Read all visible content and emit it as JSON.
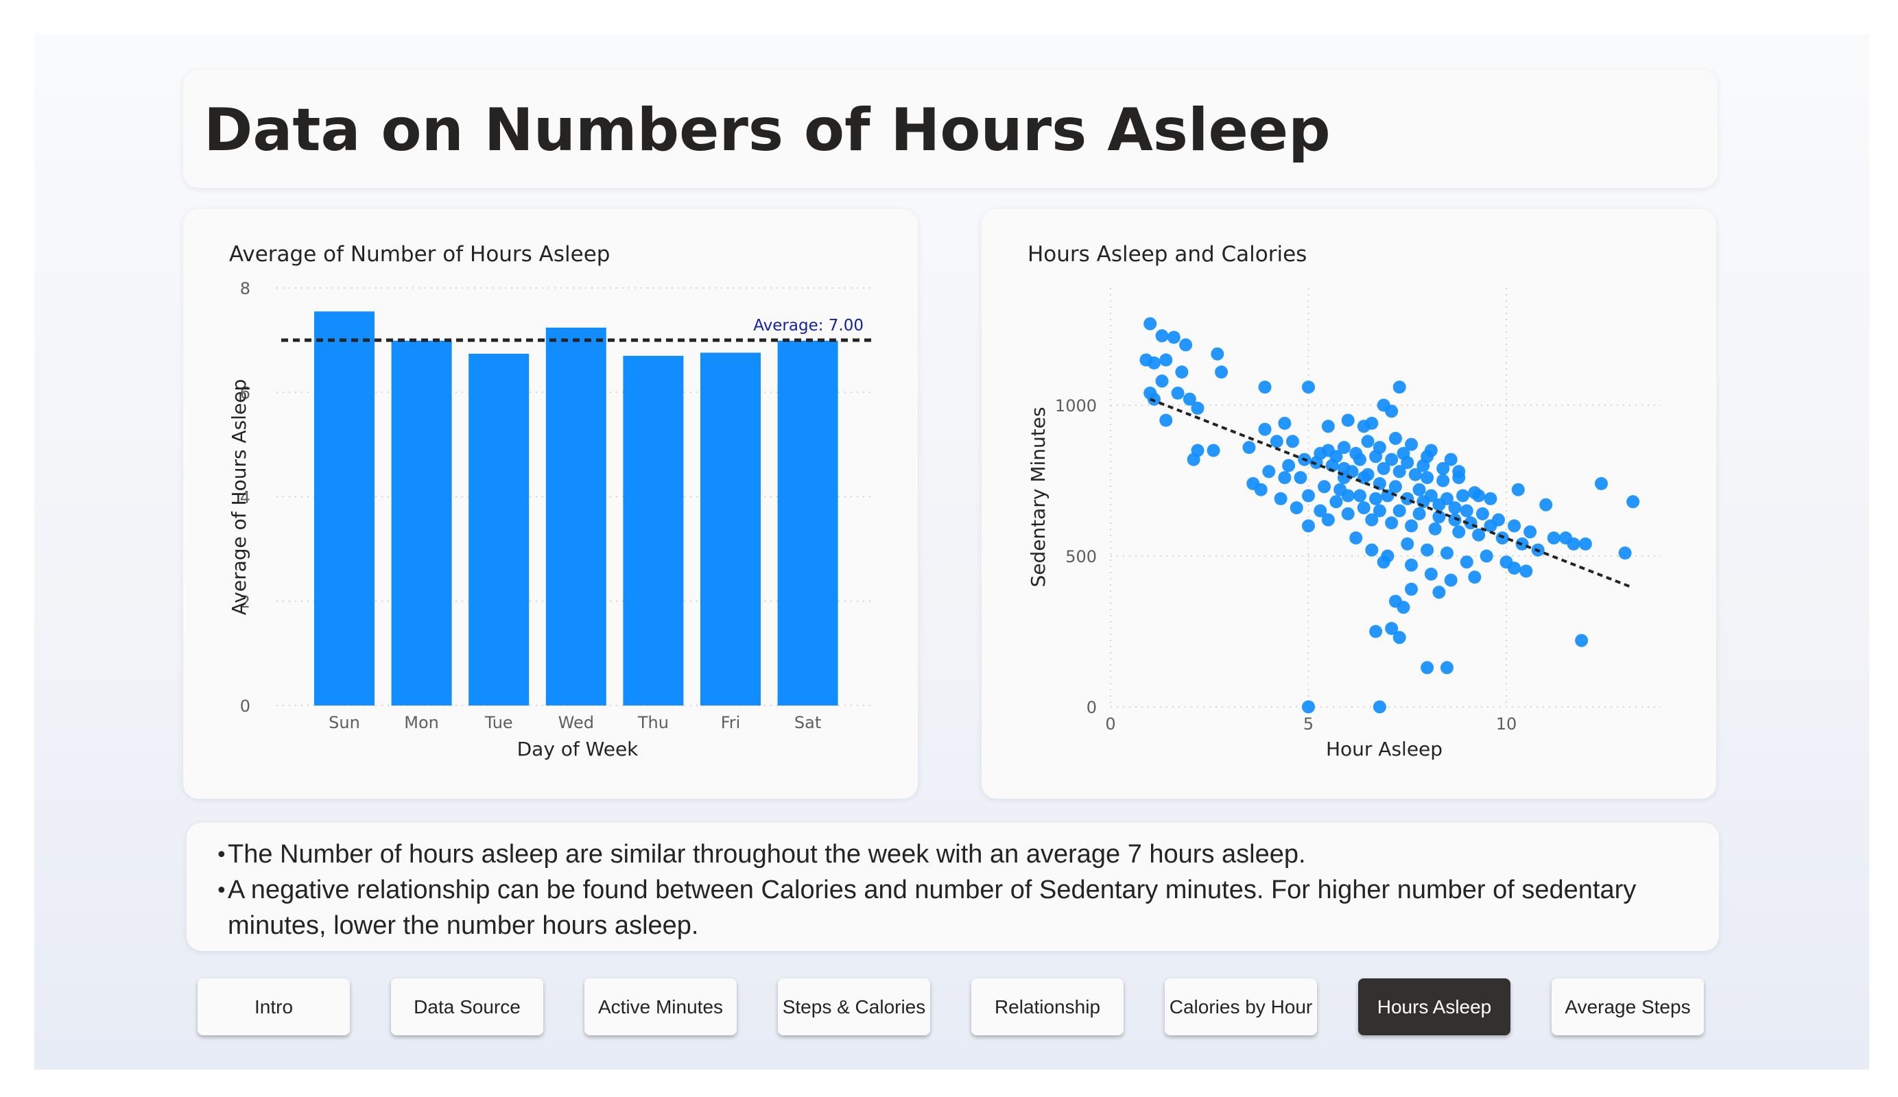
{
  "page": {
    "title": "Data on Numbers of Hours Asleep"
  },
  "colors": {
    "bar": "#118DFF",
    "point": "#118DFF",
    "average_line": "#252423",
    "average_label": "#12239E",
    "active_button": "#323130"
  },
  "chart_data": [
    {
      "type": "bar",
      "title": "Average of Number of Hours Asleep",
      "xlabel": "Day of Week",
      "ylabel": "Average of Hours Asleep",
      "categories": [
        "Sun",
        "Mon",
        "Tue",
        "Wed",
        "Thu",
        "Fri",
        "Sat"
      ],
      "values": [
        7.55,
        6.99,
        6.74,
        7.24,
        6.7,
        6.76,
        6.99
      ],
      "ylim": [
        0,
        8
      ],
      "yticks": [
        0,
        2,
        4,
        6,
        8
      ],
      "average": {
        "value": 7.0,
        "label": "Average: 7.00"
      },
      "grid": true
    },
    {
      "type": "scatter",
      "title": "Hours Asleep and Calories",
      "xlabel": "Hour Asleep",
      "ylabel": "Sedentary Minutes",
      "xlim": [
        0,
        14
      ],
      "ylim": [
        0,
        1400
      ],
      "xticks": [
        0,
        5,
        10
      ],
      "yticks": [
        0,
        500,
        1000
      ],
      "trendline": {
        "start": [
          1,
          1020
        ],
        "end": [
          13.2,
          395
        ]
      },
      "points": [
        [
          1.0,
          1270
        ],
        [
          1.3,
          1230
        ],
        [
          1.6,
          1225
        ],
        [
          1.9,
          1200
        ],
        [
          2.7,
          1170
        ],
        [
          0.9,
          1150
        ],
        [
          1.1,
          1140
        ],
        [
          1.4,
          1150
        ],
        [
          2.8,
          1110
        ],
        [
          1.8,
          1110
        ],
        [
          1.0,
          1040
        ],
        [
          1.7,
          1040
        ],
        [
          1.3,
          1080
        ],
        [
          2.0,
          1020
        ],
        [
          2.2,
          990
        ],
        [
          1.1,
          1020
        ],
        [
          1.4,
          950
        ],
        [
          2.2,
          850
        ],
        [
          2.6,
          850
        ],
        [
          2.1,
          820
        ],
        [
          3.9,
          1060
        ],
        [
          5.0,
          1060
        ],
        [
          7.3,
          1060
        ],
        [
          6.9,
          1000
        ],
        [
          7.1,
          980
        ],
        [
          6.0,
          950
        ],
        [
          6.4,
          930
        ],
        [
          6.6,
          940
        ],
        [
          5.5,
          930
        ],
        [
          4.4,
          940
        ],
        [
          3.9,
          920
        ],
        [
          3.5,
          860
        ],
        [
          4.6,
          880
        ],
        [
          4.2,
          880
        ],
        [
          4.0,
          780
        ],
        [
          4.5,
          800
        ],
        [
          4.9,
          820
        ],
        [
          5.3,
          840
        ],
        [
          5.7,
          830
        ],
        [
          6.2,
          840
        ],
        [
          6.8,
          860
        ],
        [
          7.2,
          890
        ],
        [
          7.6,
          870
        ],
        [
          8.1,
          850
        ],
        [
          8.6,
          820
        ],
        [
          5.2,
          810
        ],
        [
          5.6,
          800
        ],
        [
          5.9,
          790
        ],
        [
          6.1,
          780
        ],
        [
          6.5,
          770
        ],
        [
          6.9,
          790
        ],
        [
          7.3,
          780
        ],
        [
          7.7,
          770
        ],
        [
          8.0,
          760
        ],
        [
          8.4,
          750
        ],
        [
          8.8,
          760
        ],
        [
          9.2,
          710
        ],
        [
          9.6,
          690
        ],
        [
          10.3,
          720
        ],
        [
          11.0,
          670
        ],
        [
          12.4,
          740
        ],
        [
          13.2,
          680
        ],
        [
          3.6,
          740
        ],
        [
          3.8,
          720
        ],
        [
          4.3,
          690
        ],
        [
          4.7,
          660
        ],
        [
          5.0,
          700
        ],
        [
          5.4,
          730
        ],
        [
          5.8,
          720
        ],
        [
          6.3,
          700
        ],
        [
          6.7,
          690
        ],
        [
          7.0,
          700
        ],
        [
          7.5,
          690
        ],
        [
          7.9,
          680
        ],
        [
          8.3,
          670
        ],
        [
          8.7,
          660
        ],
        [
          9.0,
          650
        ],
        [
          9.4,
          640
        ],
        [
          9.8,
          620
        ],
        [
          10.2,
          600
        ],
        [
          10.6,
          580
        ],
        [
          11.2,
          560
        ],
        [
          11.7,
          540
        ],
        [
          12.0,
          540
        ],
        [
          11.5,
          560
        ],
        [
          5.0,
          600
        ],
        [
          5.5,
          620
        ],
        [
          6.0,
          640
        ],
        [
          6.6,
          620
        ],
        [
          7.1,
          610
        ],
        [
          7.6,
          600
        ],
        [
          8.2,
          590
        ],
        [
          8.8,
          580
        ],
        [
          9.3,
          570
        ],
        [
          9.9,
          560
        ],
        [
          10.4,
          540
        ],
        [
          10.8,
          520
        ],
        [
          6.2,
          560
        ],
        [
          6.6,
          520
        ],
        [
          7.0,
          500
        ],
        [
          7.5,
          540
        ],
        [
          8.0,
          520
        ],
        [
          8.5,
          510
        ],
        [
          9.0,
          480
        ],
        [
          9.5,
          500
        ],
        [
          10.0,
          480
        ],
        [
          10.5,
          450
        ],
        [
          10.2,
          460
        ],
        [
          6.9,
          480
        ],
        [
          7.6,
          470
        ],
        [
          8.1,
          440
        ],
        [
          8.6,
          420
        ],
        [
          9.2,
          430
        ],
        [
          7.6,
          390
        ],
        [
          8.3,
          380
        ],
        [
          7.2,
          350
        ],
        [
          7.4,
          330
        ],
        [
          6.7,
          250
        ],
        [
          7.1,
          260
        ],
        [
          7.3,
          230
        ],
        [
          11.9,
          220
        ],
        [
          13.0,
          510
        ],
        [
          8.0,
          130
        ],
        [
          8.5,
          130
        ],
        [
          5.0,
          0
        ],
        [
          6.8,
          0
        ],
        [
          6.4,
          760
        ],
        [
          6.8,
          740
        ],
        [
          7.2,
          730
        ],
        [
          7.8,
          720
        ],
        [
          8.1,
          700
        ],
        [
          8.5,
          690
        ],
        [
          8.9,
          700
        ],
        [
          9.3,
          700
        ],
        [
          6.0,
          700
        ],
        [
          5.7,
          680
        ],
        [
          5.3,
          650
        ],
        [
          6.4,
          660
        ],
        [
          6.8,
          650
        ],
        [
          7.3,
          650
        ],
        [
          7.8,
          640
        ],
        [
          8.3,
          630
        ],
        [
          8.7,
          620
        ],
        [
          9.1,
          610
        ],
        [
          9.6,
          600
        ],
        [
          5.9,
          760
        ],
        [
          6.3,
          820
        ],
        [
          6.7,
          830
        ],
        [
          7.1,
          820
        ],
        [
          7.5,
          810
        ],
        [
          7.9,
          800
        ],
        [
          8.4,
          790
        ],
        [
          8.8,
          780
        ],
        [
          5.5,
          850
        ],
        [
          5.9,
          860
        ],
        [
          6.5,
          880
        ],
        [
          7.4,
          840
        ],
        [
          8.0,
          830
        ],
        [
          4.8,
          760
        ],
        [
          4.4,
          760
        ]
      ]
    }
  ],
  "notes": [
    "The Number of hours asleep are similar throughout the week with an average 7 hours asleep.",
    "A negative relationship can be found between Calories and number of Sedentary minutes. For higher number of sedentary",
    "minutes, lower the number hours asleep."
  ],
  "nav": [
    {
      "label": "Intro",
      "active": false
    },
    {
      "label": "Data Source",
      "active": false
    },
    {
      "label": "Active Minutes",
      "active": false
    },
    {
      "label": "Steps & Calories",
      "active": false
    },
    {
      "label": "Relationship",
      "active": false
    },
    {
      "label": "Calories by Hour",
      "active": false
    },
    {
      "label": "Hours Asleep",
      "active": true
    },
    {
      "label": "Average Steps",
      "active": false
    }
  ]
}
